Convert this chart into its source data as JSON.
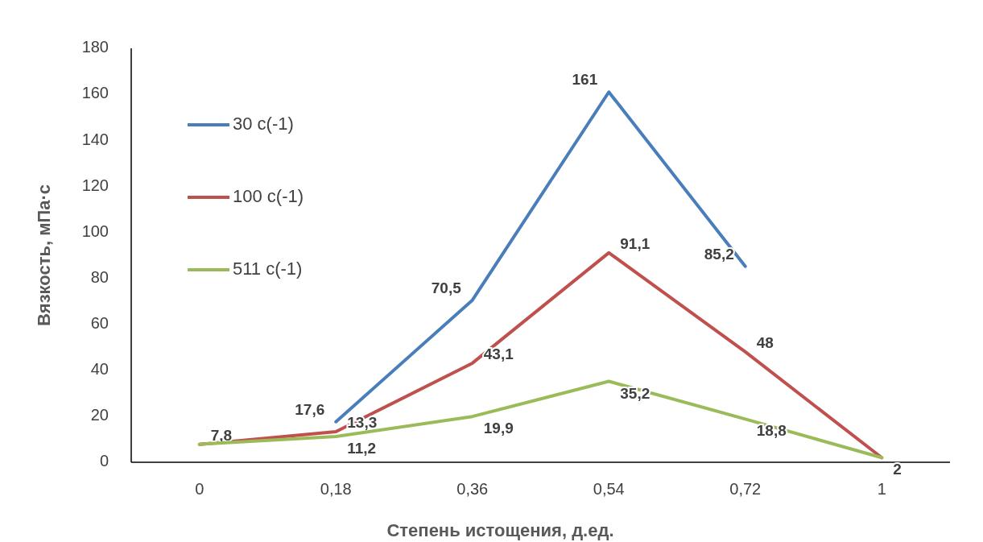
{
  "chart_data": {
    "type": "line",
    "xlabel": "Степень истощения, д.ед.",
    "ylabel": "Вязкость, мПа·с",
    "categories": [
      "0",
      "0,18",
      "0,36",
      "0,54",
      "0,72",
      "1"
    ],
    "series": [
      {
        "name": "30 с(-1)",
        "color": "#4a7ebb",
        "values": [
          null,
          17.6,
          70.5,
          161,
          85.2,
          null
        ],
        "value_labels": [
          null,
          "17,6",
          "70,5",
          "161",
          "85,2",
          null
        ]
      },
      {
        "name": "100 с(-1)",
        "color": "#c0504d",
        "values": [
          7.8,
          13.3,
          43.1,
          91.1,
          48,
          2
        ],
        "value_labels": [
          "7,8",
          "13,3",
          "43,1",
          "91,1",
          "48",
          null
        ]
      },
      {
        "name": "511 с(-1)",
        "color": "#9bbb59",
        "values": [
          7.8,
          11.2,
          19.9,
          35.2,
          18.8,
          2
        ],
        "value_labels": [
          null,
          "11,2",
          "19,9",
          "35,2",
          "18,8",
          "2"
        ]
      }
    ],
    "ylim": [
      0,
      180
    ],
    "yticks": [
      0,
      20,
      40,
      60,
      80,
      100,
      120,
      140,
      160,
      180
    ],
    "grid": false,
    "legend": "top left",
    "marker": "none",
    "line_style": "solid"
  }
}
